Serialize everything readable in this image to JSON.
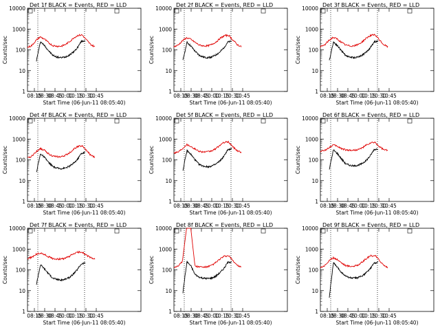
{
  "chart_data": [
    {
      "type": "line",
      "title": "Det 1f BLACK = Events, RED = LLD",
      "xlabel": "Start Time (06-Jun-11 08:05:40)",
      "ylabel": "Counts/sec",
      "ylim": [
        1,
        10000
      ],
      "yscale": "log",
      "x_ticks": [
        "08:15",
        "08:30",
        "08:45",
        "10:00",
        "10:15",
        "10:30",
        "10:45"
      ],
      "y_ticks": [
        "1",
        "10",
        "100",
        "1000",
        "10000"
      ],
      "vlines": [
        "08:20",
        "10:28"
      ],
      "series": [
        {
          "name": "BLACK",
          "color": "#000000",
          "start": "08:18",
          "end": "10:29",
          "values": [
            30,
            250,
            160,
            90,
            55,
            45,
            42,
            45,
            55,
            75,
            120,
            250,
            280
          ]
        },
        {
          "name": "RED",
          "color": "#e00000",
          "start": "08:05",
          "end": "10:43",
          "values": [
            130,
            160,
            280,
            420,
            330,
            220,
            160,
            150,
            150,
            180,
            250,
            380,
            500,
            520,
            300,
            180,
            140
          ]
        }
      ]
    },
    {
      "type": "line",
      "title": "Det 2f BLACK = Events, RED = LLD",
      "xlabel": "Start Time (06-Jun-11 08:05:40)",
      "ylabel": "Counts/sec",
      "ylim": [
        1,
        10000
      ],
      "yscale": "log",
      "x_ticks": [
        "08:15",
        "08:30",
        "08:45",
        "10:00",
        "10:15",
        "10:30",
        "10:45"
      ],
      "y_ticks": [
        "1",
        "10",
        "100",
        "1000",
        "10000"
      ],
      "vlines": [
        "08:20",
        "10:28"
      ],
      "series": [
        {
          "name": "BLACK",
          "color": "#000000",
          "start": "08:18",
          "end": "10:29",
          "values": [
            30,
            230,
            150,
            85,
            55,
            45,
            42,
            45,
            55,
            75,
            120,
            230,
            260
          ]
        },
        {
          "name": "RED",
          "color": "#e00000",
          "start": "08:05",
          "end": "10:43",
          "values": [
            140,
            170,
            270,
            380,
            320,
            230,
            170,
            155,
            155,
            180,
            240,
            360,
            480,
            500,
            300,
            180,
            140
          ]
        }
      ]
    },
    {
      "type": "line",
      "title": "Det 3f BLACK = Events, RED = LLD",
      "xlabel": "Start Time (06-Jun-11 08:05:40)",
      "ylabel": "Counts/sec",
      "ylim": [
        1,
        10000
      ],
      "yscale": "log",
      "x_ticks": [
        "08:15",
        "08:30",
        "08:45",
        "10:00",
        "10:15",
        "10:30",
        "10:45"
      ],
      "y_ticks": [
        "1",
        "10",
        "100",
        "1000",
        "10000"
      ],
      "vlines": [
        "08:20",
        "10:28"
      ],
      "series": [
        {
          "name": "BLACK",
          "color": "#000000",
          "start": "08:18",
          "end": "10:29",
          "values": [
            30,
            240,
            160,
            90,
            55,
            45,
            42,
            45,
            55,
            75,
            120,
            240,
            270
          ]
        },
        {
          "name": "RED",
          "color": "#e00000",
          "start": "08:05",
          "end": "10:43",
          "values": [
            140,
            170,
            280,
            400,
            330,
            230,
            170,
            155,
            155,
            180,
            250,
            380,
            500,
            520,
            300,
            180,
            140
          ]
        }
      ]
    },
    {
      "type": "line",
      "title": "Det 4f BLACK = Events, RED = LLD",
      "xlabel": "Start Time (06-Jun-11 08:05:40)",
      "ylabel": "Counts/sec",
      "ylim": [
        1,
        10000
      ],
      "yscale": "log",
      "x_ticks": [
        "08:15",
        "08:30",
        "08:45",
        "10:00",
        "10:15",
        "10:30",
        "10:45"
      ],
      "y_ticks": [
        "1",
        "10",
        "100",
        "1000",
        "10000"
      ],
      "vlines": [
        "08:20",
        "10:28"
      ],
      "series": [
        {
          "name": "BLACK",
          "color": "#000000",
          "start": "08:18",
          "end": "10:29",
          "values": [
            25,
            200,
            130,
            75,
            48,
            40,
            38,
            40,
            48,
            65,
            100,
            200,
            230
          ]
        },
        {
          "name": "RED",
          "color": "#e00000",
          "start": "08:05",
          "end": "10:43",
          "values": [
            120,
            150,
            240,
            350,
            290,
            200,
            150,
            140,
            140,
            165,
            220,
            330,
            450,
            460,
            280,
            170,
            130
          ]
        }
      ]
    },
    {
      "type": "line",
      "title": "Det 5f BLACK = Events, RED = LLD",
      "xlabel": "Start Time (06-Jun-11 08:05:40)",
      "ylabel": "Counts/sec",
      "ylim": [
        1,
        10000
      ],
      "yscale": "log",
      "x_ticks": [
        "08:15",
        "08:30",
        "08:45",
        "10:00",
        "10:15",
        "10:30",
        "10:45"
      ],
      "y_ticks": [
        "1",
        "10",
        "100",
        "1000",
        "10000"
      ],
      "vlines": [
        "08:20",
        "10:28"
      ],
      "series": [
        {
          "name": "BLACK",
          "color": "#000000",
          "start": "08:18",
          "end": "10:29",
          "values": [
            30,
            280,
            180,
            100,
            60,
            50,
            46,
            50,
            60,
            85,
            140,
            300,
            330
          ]
        },
        {
          "name": "RED",
          "color": "#e00000",
          "start": "08:05",
          "end": "10:43",
          "values": [
            220,
            240,
            350,
            550,
            450,
            330,
            260,
            240,
            240,
            270,
            350,
            520,
            700,
            720,
            420,
            280,
            230
          ]
        }
      ]
    },
    {
      "type": "line",
      "title": "Det 6f BLACK = Events, RED = LLD",
      "xlabel": "Start Time (06-Jun-11 08:05:40)",
      "ylabel": "Counts/sec",
      "ylim": [
        1,
        10000
      ],
      "yscale": "log",
      "x_ticks": [
        "08:15",
        "08:30",
        "08:45",
        "10:00",
        "10:15",
        "10:30",
        "10:45"
      ],
      "y_ticks": [
        "1",
        "10",
        "100",
        "1000",
        "10000"
      ],
      "vlines": [
        "08:20",
        "10:28"
      ],
      "series": [
        {
          "name": "BLACK",
          "color": "#000000",
          "start": "08:18",
          "end": "10:29",
          "values": [
            35,
            300,
            200,
            110,
            65,
            55,
            50,
            55,
            65,
            90,
            150,
            310,
            340
          ]
        },
        {
          "name": "RED",
          "color": "#e00000",
          "start": "08:05",
          "end": "10:43",
          "values": [
            260,
            280,
            380,
            520,
            450,
            350,
            300,
            290,
            290,
            310,
            380,
            520,
            650,
            680,
            430,
            310,
            280
          ]
        }
      ]
    },
    {
      "type": "line",
      "title": "Det 7f BLACK = Events, RED = LLD",
      "xlabel": "Start Time (06-Jun-11 08:05:40)",
      "ylabel": "Counts/sec",
      "ylim": [
        1,
        10000
      ],
      "yscale": "log",
      "x_ticks": [
        "08:15",
        "08:30",
        "08:45",
        "10:00",
        "10:15",
        "10:30",
        "10:45"
      ],
      "y_ticks": [
        "1",
        "10",
        "100",
        "1000",
        "10000"
      ],
      "vlines": [
        "08:20",
        "10:28"
      ],
      "series": [
        {
          "name": "BLACK",
          "color": "#000000",
          "start": "08:18",
          "end": "10:29",
          "values": [
            20,
            180,
            110,
            65,
            40,
            35,
            32,
            35,
            42,
            60,
            100,
            190,
            220
          ]
        },
        {
          "name": "RED",
          "color": "#e00000",
          "start": "08:05",
          "end": "10:43",
          "values": [
            350,
            400,
            550,
            650,
            550,
            420,
            350,
            330,
            330,
            360,
            450,
            600,
            700,
            720,
            500,
            380,
            330
          ]
        }
      ]
    },
    {
      "type": "line",
      "title": "Det 8f BLACK = Events, RED = LLD",
      "xlabel": "Start Time (06-Jun-11 08:05:40)",
      "ylabel": "Counts/sec",
      "ylim": [
        1,
        10000
      ],
      "yscale": "log",
      "x_ticks": [
        "08:15",
        "08:30",
        "08:45",
        "10:00",
        "10:15",
        "10:30",
        "10:45"
      ],
      "y_ticks": [
        "1",
        "10",
        "100",
        "1000",
        "10000"
      ],
      "vlines": [
        "08:20",
        "10:28"
      ],
      "series": [
        {
          "name": "BLACK",
          "color": "#000000",
          "start": "08:18",
          "end": "10:29",
          "values": [
            8,
            250,
            150,
            60,
            45,
            40,
            38,
            40,
            48,
            70,
            110,
            220,
            250
          ]
        },
        {
          "name": "RED",
          "color": "#e00000",
          "start": "08:05",
          "end": "10:43",
          "values": [
            130,
            160,
            250,
            10000,
            10000,
            150,
            140,
            135,
            140,
            165,
            230,
            340,
            450,
            470,
            280,
            170,
            130
          ]
        }
      ]
    },
    {
      "type": "line",
      "title": "Det 9f BLACK = Events, RED = LLD",
      "xlabel": "Start Time (06-Jun-11 08:05:40)",
      "ylabel": "Counts/sec",
      "ylim": [
        1,
        10000
      ],
      "yscale": "log",
      "x_ticks": [
        "08:15",
        "08:30",
        "08:45",
        "10:00",
        "10:15",
        "10:30",
        "10:45"
      ],
      "y_ticks": [
        "1",
        "10",
        "100",
        "1000",
        "10000"
      ],
      "vlines": [
        "08:20",
        "10:28"
      ],
      "series": [
        {
          "name": "BLACK",
          "color": "#000000",
          "start": "08:18",
          "end": "10:29",
          "values": [
            5,
            220,
            130,
            75,
            50,
            42,
            40,
            42,
            50,
            70,
            110,
            210,
            240
          ]
        },
        {
          "name": "RED",
          "color": "#e00000",
          "start": "08:05",
          "end": "10:43",
          "values": [
            130,
            160,
            260,
            380,
            320,
            220,
            160,
            150,
            150,
            175,
            240,
            360,
            470,
            490,
            290,
            170,
            130
          ]
        }
      ]
    }
  ]
}
